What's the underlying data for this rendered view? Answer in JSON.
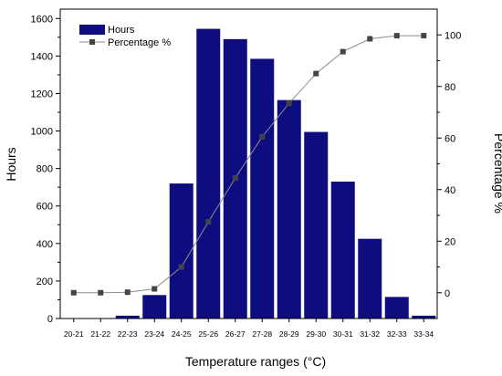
{
  "chart_data": {
    "type": "bar",
    "categories": [
      "20-21",
      "21-22",
      "22-23",
      "23-24",
      "24-25",
      "25-26",
      "26-27",
      "27-28",
      "28-29",
      "29-30",
      "30-31",
      "31-32",
      "32-33",
      "33-34"
    ],
    "series": [
      {
        "name": "Hours",
        "type": "bar",
        "axis": "left",
        "color": "#0d0d80",
        "values": [
          0,
          0,
          15,
          125,
          720,
          1545,
          1490,
          1385,
          1165,
          995,
          730,
          425,
          115,
          15
        ]
      },
      {
        "name": "Percentage %",
        "type": "line",
        "axis": "right",
        "color": "#8c8c8c",
        "marker_color": "#444444",
        "values": [
          0,
          0,
          0.2,
          1.5,
          10,
          27.5,
          44.5,
          60.5,
          73.5,
          85,
          93.5,
          98.5,
          99.7,
          99.7
        ]
      }
    ],
    "xlabel": "Temperature ranges (°C)",
    "ylabel": "Hours",
    "y2label": "Percentage %",
    "ylim": [
      0,
      1650
    ],
    "y2lim": [
      -10,
      110
    ],
    "yticks": [
      "0",
      "200",
      "400",
      "600",
      "800",
      "1000",
      "1200",
      "1400",
      "1600"
    ],
    "y2ticks": [
      "0",
      "20",
      "40",
      "60",
      "80",
      "100"
    ],
    "grid": false,
    "legend_position": "top-left"
  }
}
